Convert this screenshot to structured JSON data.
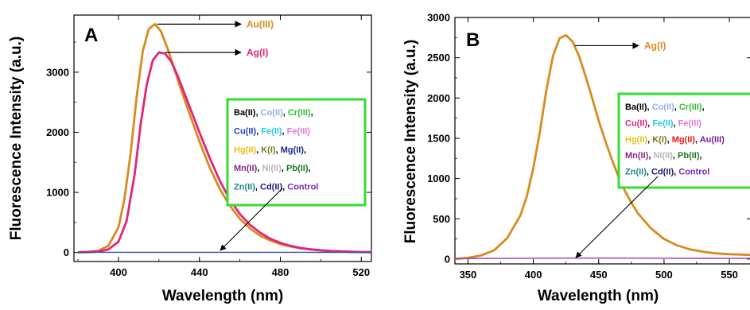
{
  "chart_data": [
    {
      "type": "line",
      "panel_label": "A",
      "xlabel": "Wavelength (nm)",
      "ylabel": "Fluorescence Intensity (a.u.)",
      "xlim": [
        378,
        525
      ],
      "ylim": [
        -150,
        3950
      ],
      "x_ticks": [
        400,
        440,
        480,
        520
      ],
      "y_ticks": [
        0,
        1000,
        2000,
        3000
      ],
      "grid": false,
      "series": [
        {
          "name": "Au(III)",
          "color": "#d98a1e",
          "x": [
            380,
            385,
            390,
            395,
            400,
            403,
            406,
            409,
            412,
            415,
            418,
            421,
            424,
            427,
            430,
            435,
            440,
            445,
            450,
            455,
            460,
            465,
            470,
            475,
            480,
            485,
            490,
            495,
            500,
            505,
            510,
            515,
            520,
            525
          ],
          "y": [
            5,
            10,
            30,
            110,
            420,
            900,
            1650,
            2600,
            3350,
            3720,
            3800,
            3680,
            3420,
            3120,
            2800,
            2320,
            1850,
            1420,
            1060,
            780,
            560,
            400,
            280,
            200,
            140,
            100,
            70,
            50,
            35,
            25,
            18,
            12,
            8,
            6
          ]
        },
        {
          "name": "Ag(I)",
          "color": "#e0247a",
          "x": [
            380,
            385,
            390,
            395,
            400,
            404,
            408,
            411,
            414,
            417,
            420,
            423,
            426,
            429,
            432,
            436,
            440,
            445,
            450,
            455,
            460,
            465,
            470,
            475,
            480,
            485,
            490,
            495,
            500,
            505,
            510,
            515,
            520,
            525
          ],
          "y": [
            3,
            6,
            15,
            50,
            180,
            520,
            1300,
            2150,
            2800,
            3200,
            3330,
            3310,
            3180,
            2960,
            2700,
            2350,
            2000,
            1580,
            1200,
            880,
            640,
            460,
            330,
            230,
            160,
            110,
            75,
            52,
            36,
            25,
            18,
            12,
            8,
            6
          ]
        },
        {
          "name": "Control",
          "color": "#3b4bb4",
          "x": [
            380,
            400,
            420,
            440,
            460,
            480,
            500,
            525
          ],
          "y": [
            2,
            3,
            4,
            4,
            3,
            3,
            2,
            2
          ]
        }
      ],
      "annotations": [
        {
          "text": "Au(III)",
          "color": "#d98a1e"
        },
        {
          "text": "Ag(I)",
          "color": "#e0247a"
        }
      ],
      "legend_box": {
        "border_color": "#33dd33",
        "lines": [
          [
            {
              "t": "Ba(II)",
              "c": "#000000"
            },
            {
              "t": ", ",
              "c": "#000000"
            },
            {
              "t": "Co(II)",
              "c": "#8fb4e6"
            },
            {
              "t": ", ",
              "c": "#000000"
            },
            {
              "t": "Cr(III)",
              "c": "#2fbf2f"
            },
            {
              "t": ",",
              "c": "#000000"
            }
          ],
          [
            {
              "t": "Cu(II)",
              "c": "#1f3fbf"
            },
            {
              "t": ", ",
              "c": "#000000"
            },
            {
              "t": "Fe(II)",
              "c": "#29c9e6"
            },
            {
              "t": ", ",
              "c": "#000000"
            },
            {
              "t": "Fe(III)",
              "c": "#e07ad8"
            }
          ],
          [
            {
              "t": "Hg(II)",
              "c": "#e6c21a"
            },
            {
              "t": ", ",
              "c": "#000000"
            },
            {
              "t": "K(I)",
              "c": "#7a7a1a"
            },
            {
              "t": ", ",
              "c": "#000000"
            },
            {
              "t": "Mg(II)",
              "c": "#1a2a8a"
            },
            {
              "t": ",",
              "c": "#000000"
            }
          ],
          [
            {
              "t": "Mn(II)",
              "c": "#8a2a8a"
            },
            {
              "t": ", ",
              "c": "#000000"
            },
            {
              "t": "Ni(II)",
              "c": "#b5b5b5"
            },
            {
              "t": ", ",
              "c": "#000000"
            },
            {
              "t": "Pb(II)",
              "c": "#1a7a1a"
            },
            {
              "t": ",",
              "c": "#000000"
            }
          ],
          [
            {
              "t": "Zn(II)",
              "c": "#1a8a8a"
            },
            {
              "t": ", ",
              "c": "#000000"
            },
            {
              "t": "Cd(II)",
              "c": "#1a1a7a"
            },
            {
              "t": ", ",
              "c": "#000000"
            },
            {
              "t": "Control",
              "c": "#7a2ab4"
            }
          ]
        ]
      }
    },
    {
      "type": "line",
      "panel_label": "B",
      "xlabel": "Wavelength (nm)",
      "ylabel": "Fluorescence Intensity (a.u.)",
      "xlim": [
        340,
        567
      ],
      "ylim": [
        -60,
        3000
      ],
      "x_ticks": [
        350,
        400,
        450,
        500,
        550
      ],
      "y_ticks": [
        0,
        500,
        1000,
        1500,
        2000,
        2500,
        3000
      ],
      "grid": false,
      "series": [
        {
          "name": "Ag(I)",
          "color": "#d98a1e",
          "x": [
            340,
            350,
            360,
            370,
            380,
            390,
            395,
            400,
            405,
            410,
            415,
            420,
            425,
            430,
            435,
            440,
            445,
            450,
            455,
            460,
            465,
            470,
            475,
            480,
            490,
            500,
            510,
            520,
            530,
            540,
            550,
            560,
            567
          ],
          "y": [
            0,
            15,
            45,
            110,
            260,
            540,
            780,
            1130,
            1580,
            2100,
            2520,
            2740,
            2780,
            2700,
            2520,
            2270,
            2000,
            1720,
            1470,
            1240,
            1030,
            850,
            700,
            570,
            380,
            250,
            170,
            120,
            90,
            70,
            60,
            55,
            50
          ]
        },
        {
          "name": "Control",
          "color": "#9a3ab4",
          "x": [
            340,
            400,
            450,
            500,
            567
          ],
          "y": [
            6,
            10,
            12,
            10,
            8
          ]
        }
      ],
      "annotations": [
        {
          "text": "Ag(I)",
          "color": "#d98a1e"
        }
      ],
      "legend_box": {
        "border_color": "#33dd33",
        "lines": [
          [
            {
              "t": "Ba(II)",
              "c": "#000000"
            },
            {
              "t": ", ",
              "c": "#000000"
            },
            {
              "t": "Co(II)",
              "c": "#8fb4e6"
            },
            {
              "t": ", ",
              "c": "#000000"
            },
            {
              "t": "Cr(III)",
              "c": "#2fbf2f"
            },
            {
              "t": ",",
              "c": "#000000"
            }
          ],
          [
            {
              "t": "Cu(II)",
              "c": "#e0247a"
            },
            {
              "t": ", ",
              "c": "#000000"
            },
            {
              "t": "Fe(II)",
              "c": "#29c9e6"
            },
            {
              "t": ", ",
              "c": "#000000"
            },
            {
              "t": "Fe(III)",
              "c": "#e07ad8"
            }
          ],
          [
            {
              "t": "Hg(II)",
              "c": "#e6c21a"
            },
            {
              "t": ", ",
              "c": "#000000"
            },
            {
              "t": "K(I)",
              "c": "#7a7a1a"
            },
            {
              "t": ", ",
              "c": "#000000"
            },
            {
              "t": "Mg(II)",
              "c": "#e61a1a"
            },
            {
              "t": ", ",
              "c": "#000000"
            },
            {
              "t": "Au(III)",
              "c": "#7a1a9a"
            }
          ],
          [
            {
              "t": "Mn(II)",
              "c": "#8a2a8a"
            },
            {
              "t": ", ",
              "c": "#000000"
            },
            {
              "t": "Ni(II)",
              "c": "#b5b5b5"
            },
            {
              "t": ", ",
              "c": "#000000"
            },
            {
              "t": "Pb(II)",
              "c": "#1a7a1a"
            },
            {
              "t": ",",
              "c": "#000000"
            }
          ],
          [
            {
              "t": "Zn(II)",
              "c": "#1a8a8a"
            },
            {
              "t": ", ",
              "c": "#000000"
            },
            {
              "t": "Cd(II)",
              "c": "#1a1a7a"
            },
            {
              "t": ", ",
              "c": "#000000"
            },
            {
              "t": "Control",
              "c": "#7a2ab4"
            }
          ]
        ]
      }
    }
  ]
}
